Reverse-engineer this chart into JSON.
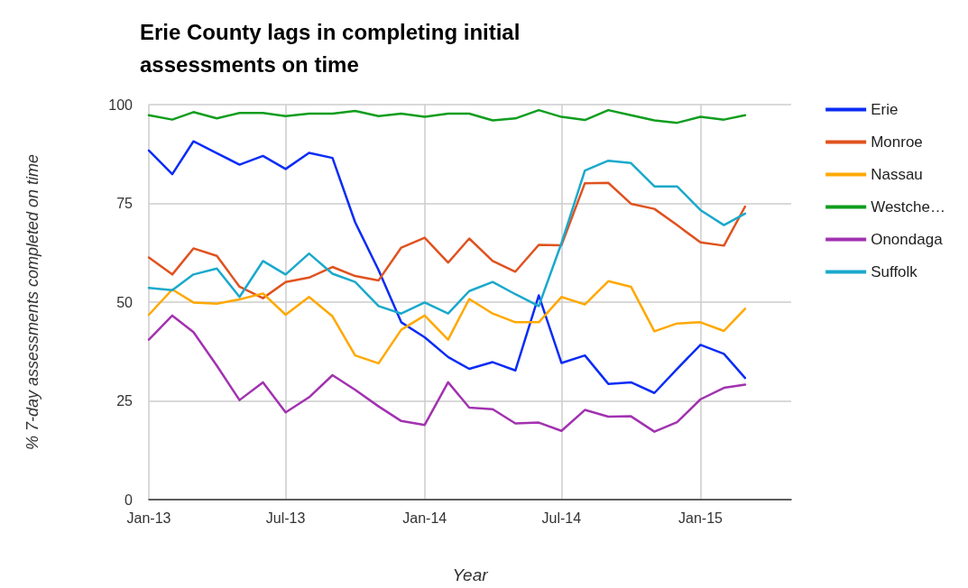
{
  "chart_data": {
    "type": "line",
    "title": "Erie County lags in completing initial assessments on time",
    "xlabel": "Year",
    "ylabel": "% 7-day assessments completed on time",
    "x": [
      "2013-01",
      "2013-02",
      "2013-03",
      "2013-04",
      "2013-05",
      "2013-06",
      "2013-07",
      "2013-08",
      "2013-09",
      "2013-10",
      "2013-11",
      "2013-12",
      "2014-01",
      "2014-02",
      "2014-03",
      "2014-04",
      "2014-05",
      "2014-06",
      "2014-07",
      "2014-08",
      "2014-09",
      "2014-10",
      "2014-11",
      "2014-12",
      "2015-01",
      "2015-02",
      "2015-03"
    ],
    "series": [
      {
        "name": "Erie",
        "color": "#0b2cf5",
        "values": [
          88.4,
          82.4,
          90.7,
          87.7,
          84.8,
          87.0,
          83.7,
          87.8,
          86.5,
          70.2,
          58.1,
          44.9,
          41.1,
          36.1,
          33.1,
          34.8,
          32.7,
          51.7,
          34.6,
          36.5,
          29.3,
          29.7,
          27.0,
          33.1,
          39.2,
          36.9,
          30.8
        ]
      },
      {
        "name": "Monroe",
        "color": "#e0521f",
        "values": [
          61.3,
          57.0,
          63.6,
          61.7,
          53.9,
          51.0,
          55.1,
          56.2,
          58.9,
          56.6,
          55.5,
          63.8,
          66.3,
          60.0,
          66.1,
          60.4,
          57.7,
          64.5,
          64.4,
          80.1,
          80.2,
          74.9,
          73.6,
          69.5,
          65.1,
          64.3,
          74.2
        ]
      },
      {
        "name": "Nassau",
        "color": "#ffa800",
        "values": [
          46.8,
          53.2,
          49.9,
          49.6,
          50.7,
          52.2,
          46.8,
          51.3,
          46.4,
          36.5,
          34.5,
          43.0,
          46.6,
          40.5,
          50.8,
          47.1,
          44.9,
          44.9,
          51.3,
          49.4,
          55.3,
          53.9,
          42.6,
          44.6,
          44.9,
          42.7,
          48.3
        ]
      },
      {
        "name": "Westche…",
        "color": "#0f9d1e",
        "values": [
          97.3,
          96.2,
          98.1,
          96.5,
          97.9,
          97.9,
          97.1,
          97.7,
          97.7,
          98.4,
          97.1,
          97.7,
          96.9,
          97.7,
          97.7,
          96.0,
          96.5,
          98.6,
          96.9,
          96.1,
          98.6,
          97.3,
          96.0,
          95.4,
          96.9,
          96.2,
          97.3
        ]
      },
      {
        "name": "Onondaga",
        "color": "#a232b0",
        "values": [
          40.5,
          46.6,
          42.4,
          33.9,
          25.2,
          29.7,
          22.1,
          25.9,
          31.5,
          27.8,
          23.6,
          19.9,
          18.9,
          29.7,
          23.3,
          22.9,
          19.3,
          19.5,
          17.4,
          22.7,
          21.0,
          21.1,
          17.2,
          19.6,
          25.4,
          28.3,
          29.1
        ]
      },
      {
        "name": "Suffolk",
        "color": "#1aa9cc",
        "values": [
          53.6,
          53.0,
          57.0,
          58.5,
          51.3,
          60.4,
          57.0,
          62.3,
          57.2,
          55.1,
          49.0,
          47.1,
          49.9,
          47.1,
          52.8,
          55.1,
          52.0,
          49.0,
          64.9,
          83.3,
          85.8,
          85.2,
          79.3,
          79.3,
          73.3,
          69.5,
          72.4
        ]
      }
    ],
    "xlim": [
      "2013-01",
      "2015-05"
    ],
    "xticks": [
      {
        "value": "2013-01",
        "label": "Jan-13"
      },
      {
        "value": "2013-07",
        "label": "Jul-13"
      },
      {
        "value": "2014-01",
        "label": "Jan-14"
      },
      {
        "value": "2014-07",
        "label": "Jul-14"
      },
      {
        "value": "2015-01",
        "label": "Jan-15"
      }
    ],
    "ylim": [
      0,
      100
    ],
    "yticks": [
      0,
      25,
      50,
      75,
      100
    ],
    "grid": true,
    "legend": "right",
    "marker": "none",
    "line_style": "solid"
  }
}
